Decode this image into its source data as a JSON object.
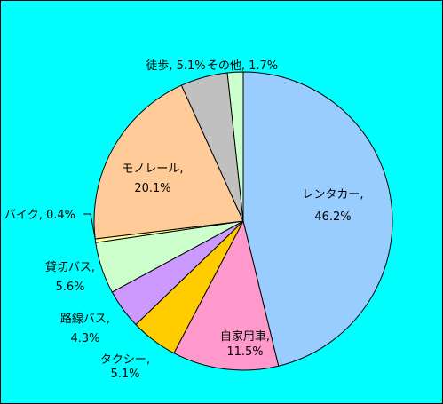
{
  "chart_data": {
    "type": "pie",
    "title": "",
    "slices": [
      {
        "label": "レンタカー",
        "value": 46.2,
        "value_text": "46.2%",
        "color": "#99ccff"
      },
      {
        "label": "自家用車",
        "value": 11.5,
        "value_text": "11.5%",
        "color": "#ff99cc"
      },
      {
        "label": "タクシー",
        "value": 5.1,
        "value_text": "5.1%",
        "color": "#ffcc00"
      },
      {
        "label": "路線バス",
        "value": 4.3,
        "value_text": "4.3%",
        "color": "#cc99ff"
      },
      {
        "label": "貸切バス",
        "value": 5.6,
        "value_text": "5.6%",
        "color": "#ccffcc"
      },
      {
        "label": "バイク",
        "value": 0.4,
        "value_text": "0.4%",
        "color": "#ffff99"
      },
      {
        "label": "モノレール",
        "value": 20.1,
        "value_text": "20.1%",
        "color": "#ffcc99"
      },
      {
        "label": "徒歩",
        "value": 5.1,
        "value_text": "5.1%",
        "color": "#c0c0c0"
      },
      {
        "label": "その他",
        "value": 1.7,
        "value_text": "1.7%",
        "color": "#ccffcc"
      }
    ],
    "legend": "none",
    "background": "#00ffff",
    "start_angle": "12 o'clock",
    "direction": "clockwise"
  }
}
